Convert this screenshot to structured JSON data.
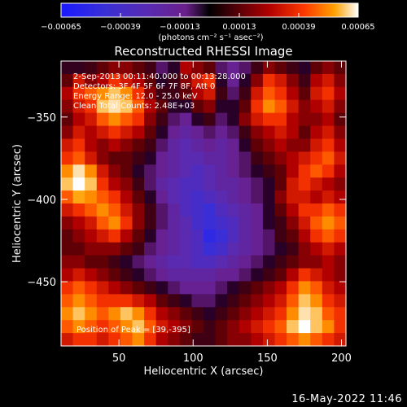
{
  "chart_data": {
    "type": "heatmap",
    "title": "Reconstructed RHESSI Image",
    "xlabel": "Heliocentric X (arcsec)",
    "ylabel": "Heliocentric Y (arcsec)",
    "xlim": [
      11,
      203
    ],
    "ylim": [
      -489,
      -316
    ],
    "xticks": [
      50,
      100,
      150,
      200
    ],
    "yticks": [
      -350,
      -400,
      -450
    ],
    "colorbar": {
      "ticks": [
        "-0.00065",
        "-0.00039",
        "-0.00013",
        "0.00013",
        "0.00039",
        "0.00065"
      ],
      "range": [
        -0.00065,
        0.00065
      ],
      "unit_label": "(photons cm⁻² s⁻¹ asec⁻²)"
    },
    "annotations": [
      "2-Sep-2013 00:11:40.000 to 00:13:28.000",
      "Detectors: 3F 4F 5F 6F 7F 8F, Att 0",
      "Energy Range: 12.0 - 25.0 keV",
      "Clean      Total Counts: 2.48E+03"
    ],
    "peak_text": "Position of Peak = [39,-395]",
    "image_grid": {
      "cols": 24,
      "rows": 22,
      "values": [
        [
          0.05,
          0.05,
          0.1,
          0.2,
          0.3,
          0.3,
          0.2,
          0.1,
          -0.1,
          0.0,
          0.4,
          0.3,
          0.2,
          -0.1,
          -0.2,
          -0.1,
          0.1,
          0.3,
          0.2,
          0.1,
          0.0,
          0.2,
          0.3,
          0.2
        ],
        [
          0.2,
          0.5,
          0.3,
          0.4,
          0.6,
          0.5,
          0.4,
          0.2,
          0.0,
          0.1,
          0.3,
          0.5,
          0.6,
          0.0,
          -0.2,
          0.0,
          0.3,
          0.6,
          0.5,
          0.3,
          0.1,
          0.4,
          0.5,
          0.3
        ],
        [
          0.4,
          0.6,
          0.7,
          0.8,
          0.9,
          0.8,
          0.6,
          0.3,
          0.1,
          0.1,
          0.2,
          0.4,
          0.5,
          0.1,
          -0.1,
          0.1,
          0.5,
          0.7,
          0.6,
          0.4,
          0.2,
          0.5,
          0.6,
          0.4
        ],
        [
          0.3,
          0.5,
          0.6,
          0.9,
          0.95,
          0.9,
          0.7,
          0.4,
          0.2,
          0.0,
          0.0,
          0.2,
          0.3,
          0.0,
          0.0,
          0.2,
          0.6,
          0.8,
          0.7,
          0.5,
          0.3,
          0.4,
          0.5,
          0.3
        ],
        [
          0.2,
          0.4,
          0.5,
          0.7,
          0.8,
          0.7,
          0.6,
          0.3,
          0.1,
          -0.1,
          -0.2,
          0.0,
          0.1,
          -0.1,
          0.0,
          0.3,
          0.5,
          0.6,
          0.6,
          0.4,
          0.3,
          0.3,
          0.4,
          0.2
        ],
        [
          0.3,
          0.5,
          0.4,
          0.5,
          0.6,
          0.5,
          0.4,
          0.2,
          0.0,
          -0.2,
          -0.3,
          -0.2,
          -0.1,
          -0.2,
          -0.1,
          0.1,
          0.3,
          0.4,
          0.5,
          0.4,
          0.2,
          0.4,
          0.5,
          0.3
        ],
        [
          0.5,
          0.6,
          0.4,
          0.3,
          0.4,
          0.3,
          0.2,
          0.1,
          -0.1,
          -0.3,
          -0.4,
          -0.3,
          -0.2,
          -0.3,
          -0.2,
          0.0,
          0.2,
          0.3,
          0.4,
          0.3,
          0.3,
          0.5,
          0.6,
          0.4
        ],
        [
          0.6,
          0.7,
          0.5,
          0.3,
          0.2,
          0.2,
          0.1,
          0.0,
          -0.2,
          -0.3,
          -0.4,
          -0.4,
          -0.3,
          -0.3,
          -0.2,
          -0.1,
          0.1,
          0.2,
          0.3,
          0.4,
          0.5,
          0.6,
          0.7,
          0.5
        ],
        [
          0.8,
          0.95,
          0.8,
          0.5,
          0.3,
          0.2,
          0.0,
          -0.1,
          -0.2,
          -0.3,
          -0.4,
          -0.5,
          -0.4,
          -0.3,
          -0.2,
          -0.1,
          0.0,
          0.1,
          0.2,
          0.4,
          0.6,
          0.7,
          0.6,
          0.4
        ],
        [
          0.9,
          1.0,
          0.9,
          0.6,
          0.4,
          0.3,
          0.1,
          -0.1,
          -0.3,
          -0.4,
          -0.5,
          -0.5,
          -0.4,
          -0.3,
          -0.3,
          -0.2,
          -0.1,
          0.0,
          0.2,
          0.5,
          0.6,
          0.5,
          0.4,
          0.3
        ],
        [
          0.7,
          0.85,
          0.8,
          0.7,
          0.6,
          0.4,
          0.2,
          0.0,
          -0.2,
          -0.4,
          -0.5,
          -0.6,
          -0.5,
          -0.4,
          -0.3,
          -0.2,
          -0.1,
          0.0,
          0.3,
          0.5,
          0.5,
          0.4,
          0.5,
          0.4
        ],
        [
          0.5,
          0.6,
          0.7,
          0.8,
          0.7,
          0.5,
          0.3,
          0.1,
          -0.1,
          -0.3,
          -0.5,
          -0.6,
          -0.7,
          -0.5,
          -0.4,
          -0.3,
          -0.2,
          0.0,
          0.2,
          0.4,
          0.6,
          0.6,
          0.7,
          0.6
        ],
        [
          0.3,
          0.4,
          0.5,
          0.7,
          0.8,
          0.6,
          0.3,
          0.1,
          -0.1,
          -0.3,
          -0.4,
          -0.6,
          -0.7,
          -0.6,
          -0.5,
          -0.3,
          -0.2,
          0.0,
          0.1,
          0.3,
          0.5,
          0.7,
          0.8,
          0.7
        ],
        [
          0.2,
          0.3,
          0.4,
          0.5,
          0.6,
          0.4,
          0.2,
          0.0,
          -0.2,
          -0.3,
          -0.4,
          -0.5,
          -0.8,
          -0.7,
          -0.5,
          -0.3,
          -0.2,
          -0.1,
          0.1,
          0.2,
          0.4,
          0.6,
          0.7,
          0.6
        ],
        [
          0.2,
          0.2,
          0.3,
          0.3,
          0.3,
          0.2,
          0.1,
          -0.1,
          -0.2,
          -0.3,
          -0.4,
          -0.5,
          -0.7,
          -0.6,
          -0.4,
          -0.3,
          -0.2,
          -0.1,
          0.0,
          0.1,
          0.3,
          0.4,
          0.5,
          0.4
        ],
        [
          0.3,
          0.3,
          0.2,
          0.2,
          0.1,
          0.0,
          -0.1,
          -0.2,
          -0.3,
          -0.4,
          -0.4,
          -0.5,
          -0.5,
          -0.4,
          -0.3,
          -0.2,
          -0.1,
          0.0,
          0.1,
          0.2,
          0.3,
          0.3,
          0.4,
          0.3
        ],
        [
          0.4,
          0.5,
          0.4,
          0.3,
          0.2,
          0.1,
          0.0,
          -0.1,
          -0.2,
          -0.3,
          -0.3,
          -0.3,
          -0.3,
          -0.2,
          -0.2,
          -0.1,
          0.0,
          0.1,
          0.2,
          0.4,
          0.6,
          0.5,
          0.4,
          0.3
        ],
        [
          0.6,
          0.7,
          0.6,
          0.5,
          0.4,
          0.3,
          0.2,
          0.1,
          0.0,
          -0.1,
          -0.2,
          -0.2,
          -0.2,
          -0.1,
          0.0,
          0.1,
          0.2,
          0.3,
          0.4,
          0.6,
          0.8,
          0.7,
          0.5,
          0.4
        ],
        [
          0.7,
          0.8,
          0.7,
          0.6,
          0.6,
          0.6,
          0.5,
          0.4,
          0.2,
          0.1,
          0.0,
          -0.1,
          -0.1,
          0.0,
          0.1,
          0.2,
          0.3,
          0.4,
          0.5,
          0.7,
          0.9,
          0.8,
          0.6,
          0.5
        ],
        [
          0.8,
          0.9,
          0.8,
          0.7,
          0.8,
          0.9,
          0.8,
          0.6,
          0.4,
          0.3,
          0.2,
          0.1,
          0.0,
          0.1,
          0.2,
          0.3,
          0.4,
          0.5,
          0.6,
          0.8,
          0.95,
          0.9,
          0.7,
          0.6
        ],
        [
          0.7,
          0.8,
          0.7,
          0.6,
          0.7,
          0.8,
          0.9,
          0.7,
          0.5,
          0.4,
          0.3,
          0.2,
          0.1,
          0.2,
          0.3,
          0.4,
          0.5,
          0.6,
          0.7,
          0.9,
          1.0,
          0.9,
          0.8,
          0.6
        ],
        [
          0.5,
          0.6,
          0.6,
          0.5,
          0.6,
          0.7,
          0.8,
          0.6,
          0.4,
          0.3,
          0.2,
          0.1,
          0.1,
          0.2,
          0.3,
          0.3,
          0.4,
          0.5,
          0.6,
          0.7,
          0.8,
          0.7,
          0.6,
          0.5
        ]
      ]
    }
  },
  "footer": {
    "timestamp": "16-May-2022 11:46"
  }
}
